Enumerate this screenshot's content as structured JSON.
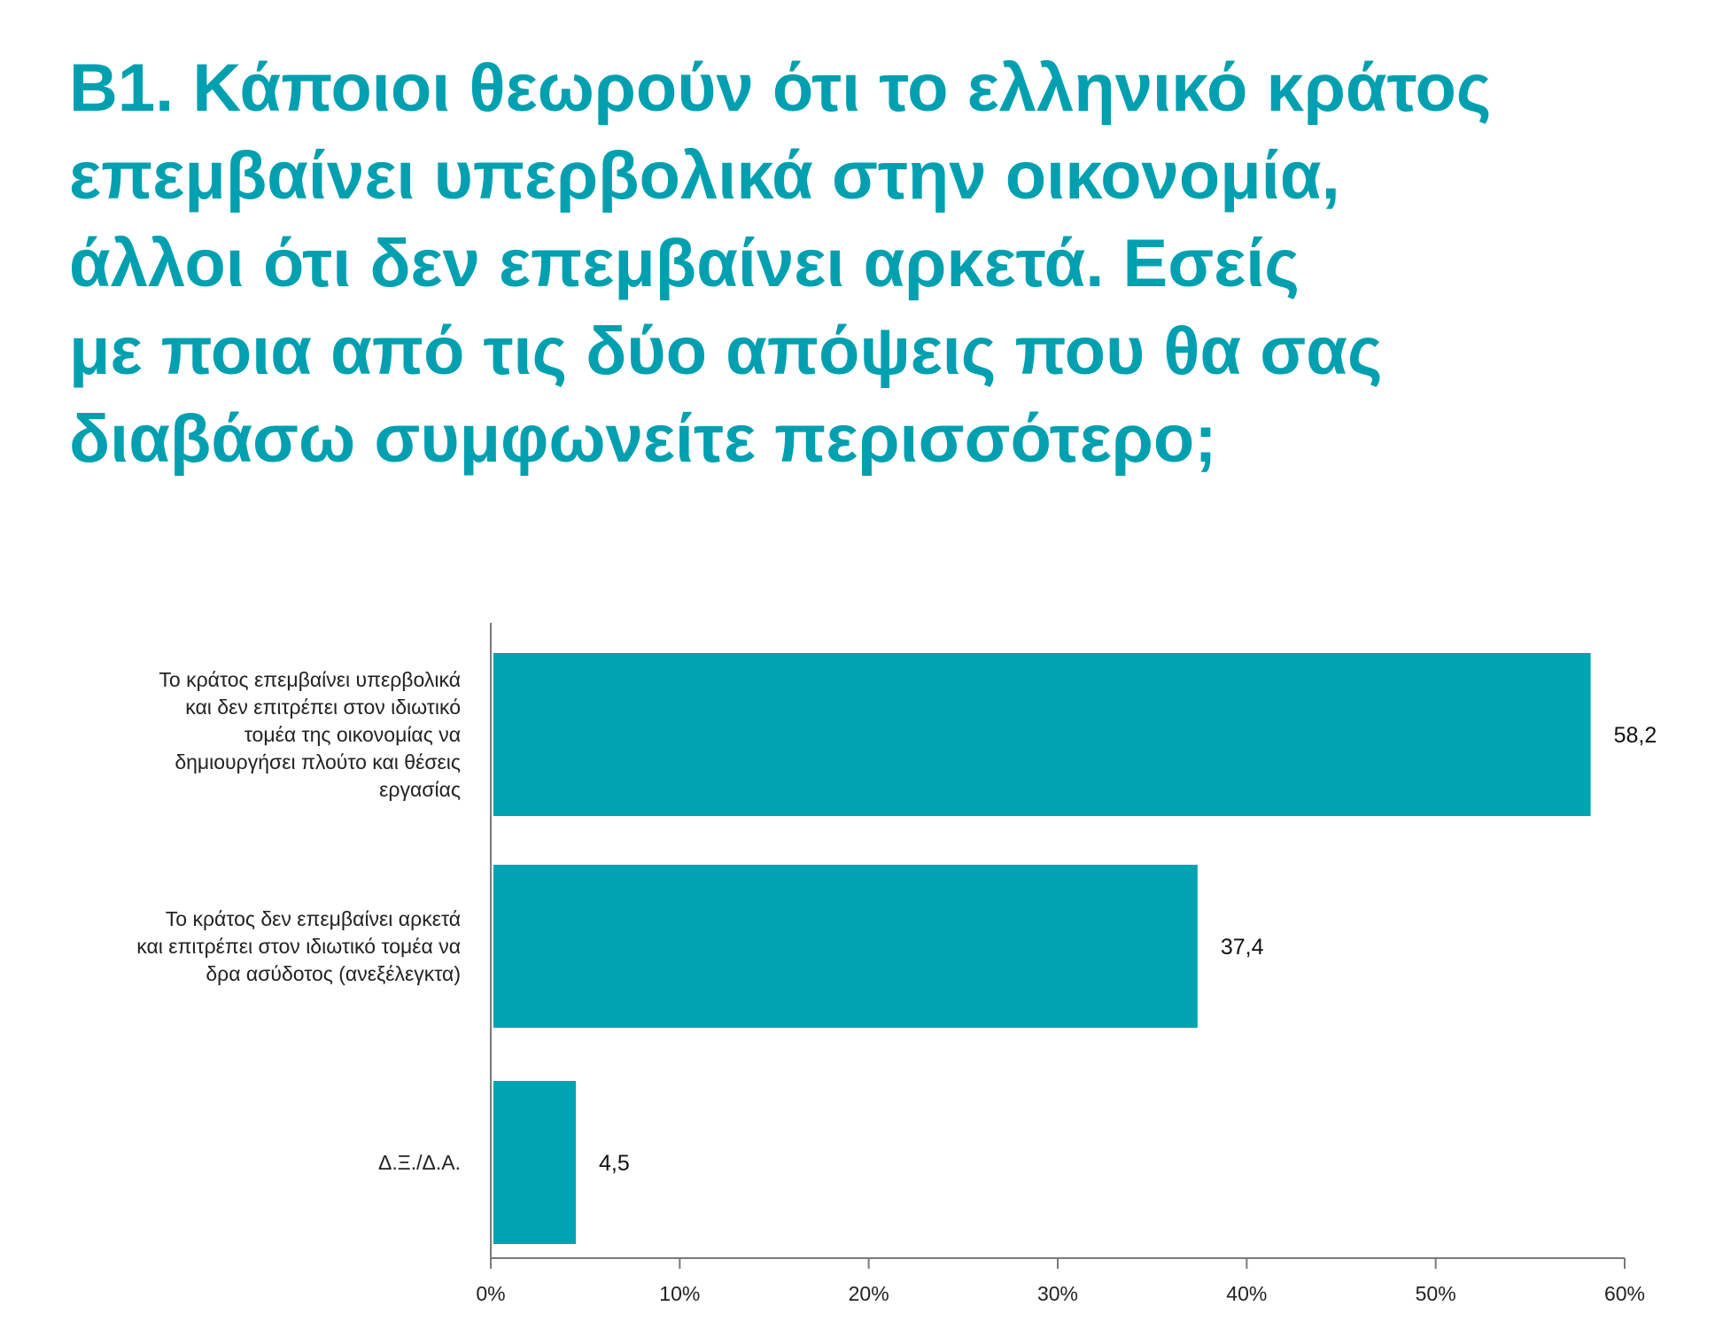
{
  "title_lines": [
    "B1. Κάποιοι θεωρούν ότι το ελληνικό κράτος",
    "επεμβαίνει υπερβολικά στην οικονομία,",
    "άλλοι ότι δεν επεμβαίνει αρκετά. Εσείς",
    "με ποια από τις δύο απόψεις που θα σας",
    "διαβάσω συμφωνείτε περισσότερο;"
  ],
  "colors": {
    "accent": "#00A3B2",
    "title": "#00A0B0",
    "axis": "#7a7a7a"
  },
  "chart_data": {
    "type": "bar",
    "orientation": "horizontal",
    "categories": [
      [
        "Το κράτος επεμβαίνει υπερβολικά",
        "και δεν επιτρέπει στον ιδιωτικό",
        "τομέα της οικονομίας να",
        "δημιουργήσει πλούτο και θέσεις",
        "εργασίας"
      ],
      [
        "Το κράτος δεν επεμβαίνει αρκετά",
        "και επιτρέπει στον ιδιωτικό τομέα να",
        "δρα ασύδοτος (ανεξέλεγκτα)"
      ],
      [
        "Δ.Ξ./Δ.Α."
      ]
    ],
    "values": [
      58.2,
      37.4,
      4.5
    ],
    "value_labels": [
      "58,2",
      "37,4",
      "4,5"
    ],
    "xlim": [
      0,
      60
    ],
    "ticks": [
      0,
      10,
      20,
      30,
      40,
      50,
      60
    ],
    "tick_labels": [
      "0%",
      "10%",
      "20%",
      "30%",
      "40%",
      "50%",
      "60%"
    ],
    "grid": false,
    "legend": "none"
  }
}
